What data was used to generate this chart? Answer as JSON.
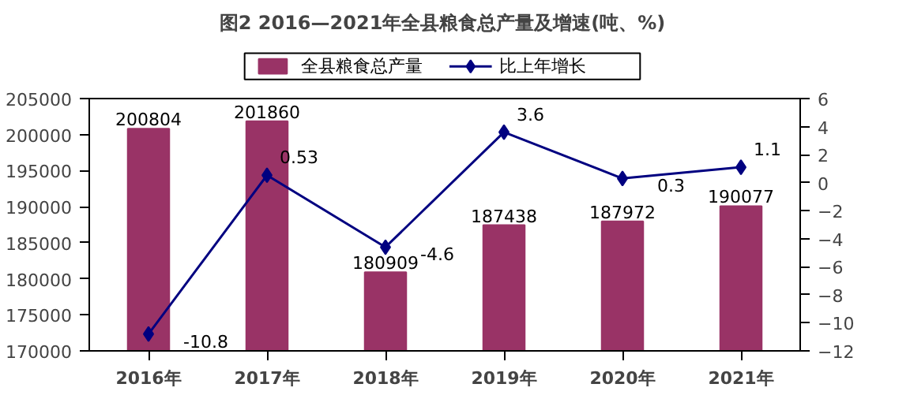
{
  "chart_data": {
    "type": "bar",
    "title": "图2 2016—2021年全县粮食总产量及增速(吨、%)",
    "categories": [
      "2016年",
      "2017年",
      "2018年",
      "2019年",
      "2020年",
      "2021年"
    ],
    "series": [
      {
        "name": "全县粮食总产量",
        "color": "#993366",
        "values": [
          200804,
          201860,
          180909,
          187438,
          187972,
          190077
        ]
      },
      {
        "name": "比上年增长",
        "type": "line",
        "axis": "y2",
        "color": "#000080",
        "values": [
          -10.8,
          0.53,
          -4.6,
          3.6,
          0.3,
          1.1
        ]
      }
    ],
    "ylim": [
      170000,
      205000
    ],
    "yticks": [
      170000,
      175000,
      180000,
      185000,
      190000,
      195000,
      200000,
      205000
    ],
    "y2lim": [
      -12,
      6
    ],
    "y2ticks": [
      -12,
      -10,
      -8,
      -6,
      -4,
      -2,
      0,
      2,
      4,
      6
    ],
    "data_labels": true,
    "grid": false,
    "legend": "top",
    "marker": "diamond",
    "line_style": "solid"
  }
}
